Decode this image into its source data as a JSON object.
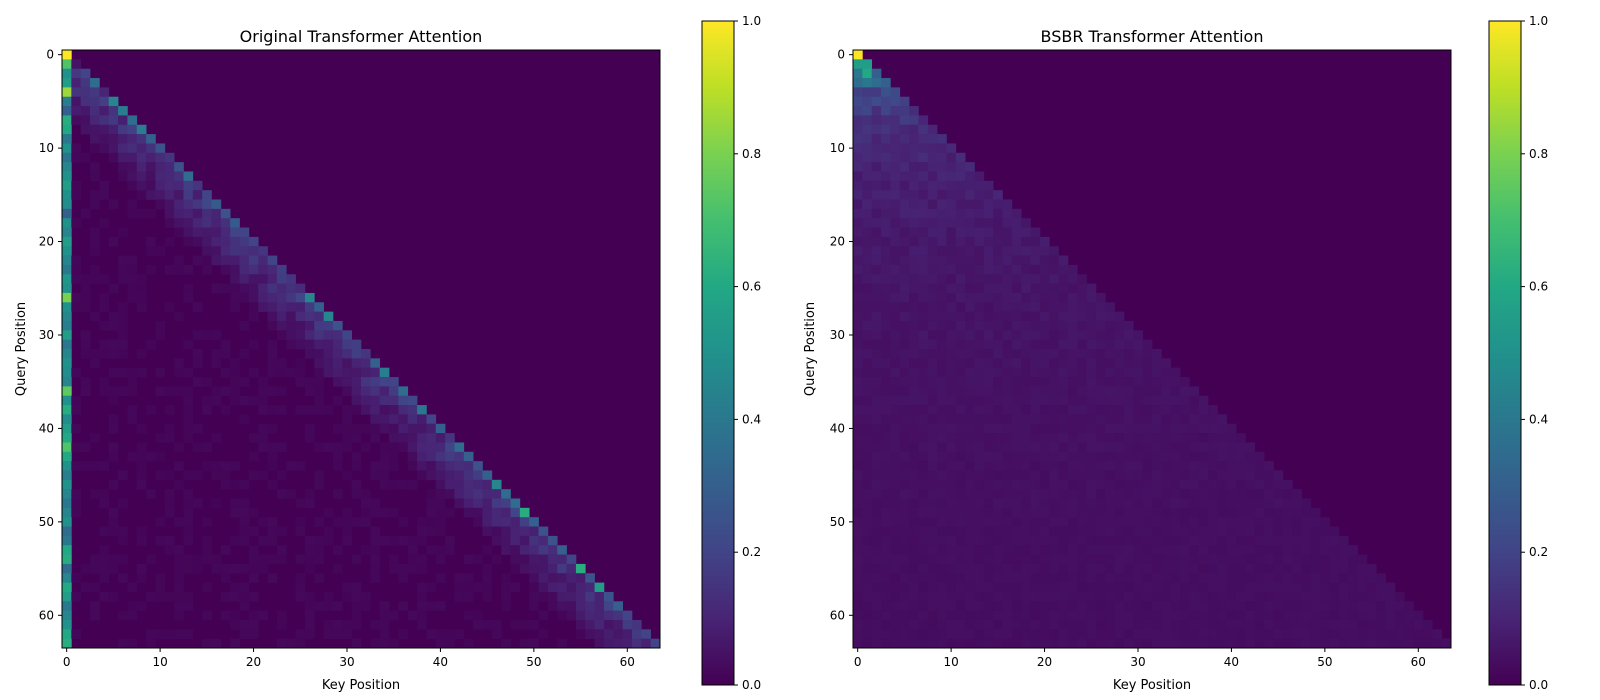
{
  "chart_data": [
    {
      "type": "heatmap",
      "title": "Original Transformer Attention",
      "xlabel": "Key Position",
      "ylabel": "Query Position",
      "size": 64,
      "x_ticks": [
        0,
        10,
        20,
        30,
        40,
        50,
        60
      ],
      "y_ticks": [
        0,
        10,
        20,
        30,
        40,
        50,
        60
      ],
      "colormap": "viridis",
      "clim": [
        0,
        1
      ],
      "colorbar_ticks": [
        "0.0",
        "0.2",
        "0.4",
        "0.6",
        "0.8",
        "1.0"
      ],
      "mask": "lower-triangular (causal)",
      "first_column_values": [
        1.0,
        0.72,
        0.5,
        0.55,
        0.85,
        0.42,
        0.3,
        0.62,
        0.6,
        0.4,
        0.5,
        0.38,
        0.45,
        0.5,
        0.55,
        0.5,
        0.48,
        0.3,
        0.5,
        0.45,
        0.55,
        0.5,
        0.45,
        0.4,
        0.52,
        0.5,
        0.8,
        0.5,
        0.45,
        0.42,
        0.55,
        0.4,
        0.45,
        0.5,
        0.48,
        0.45,
        0.75,
        0.5,
        0.62,
        0.48,
        0.55,
        0.6,
        0.72,
        0.6,
        0.5,
        0.42,
        0.5,
        0.45,
        0.4,
        0.45,
        0.5,
        0.35,
        0.4,
        0.6,
        0.62,
        0.35,
        0.45,
        0.6,
        0.55,
        0.4,
        0.45,
        0.5,
        0.6,
        0.62
      ],
      "diagonal_values": [
        0,
        0.05,
        0.2,
        0.35,
        0.1,
        0.45,
        0.42,
        0.35,
        0.42,
        0.3,
        0.25,
        0.15,
        0.25,
        0.35,
        0.15,
        0.2,
        0.28,
        0.25,
        0.28,
        0.2,
        0.2,
        0.15,
        0.2,
        0.18,
        0.15,
        0.12,
        0.45,
        0.3,
        0.45,
        0.25,
        0.2,
        0.18,
        0.15,
        0.3,
        0.42,
        0.2,
        0.35,
        0.22,
        0.4,
        0.2,
        0.3,
        0.15,
        0.35,
        0.3,
        0.25,
        0.3,
        0.45,
        0.35,
        0.35,
        0.62,
        0.3,
        0.25,
        0.25,
        0.3,
        0.2,
        0.62,
        0.25,
        0.55,
        0.25,
        0.3,
        0.2,
        0.15,
        0.2,
        0.2
      ],
      "notes": "Strong attention to key 0 (attention sink) and to the main diagonal; near-zero elsewhere"
    },
    {
      "type": "heatmap",
      "title": "BSBR Transformer Attention",
      "xlabel": "Key Position",
      "ylabel": "Query Position",
      "size": 64,
      "x_ticks": [
        0,
        10,
        20,
        30,
        40,
        50,
        60
      ],
      "y_ticks": [
        0,
        10,
        20,
        30,
        40,
        50,
        60
      ],
      "colormap": "viridis",
      "clim": [
        0,
        1
      ],
      "colorbar_ticks": [
        "0.0",
        "0.2",
        "0.4",
        "0.6",
        "0.8",
        "1.0"
      ],
      "mask": "lower-triangular (causal)",
      "row_uniform_value_formula": "approximately 1/(query+1)",
      "corner_values": [
        [
          1.0
        ],
        [
          0.55,
          0.55
        ],
        [
          0.4,
          0.6,
          0.3
        ],
        [
          0.35,
          0.4,
          0.35,
          0.3
        ]
      ],
      "notes": "Attention spread roughly uniformly over all previous keys; values decay with query position"
    }
  ]
}
